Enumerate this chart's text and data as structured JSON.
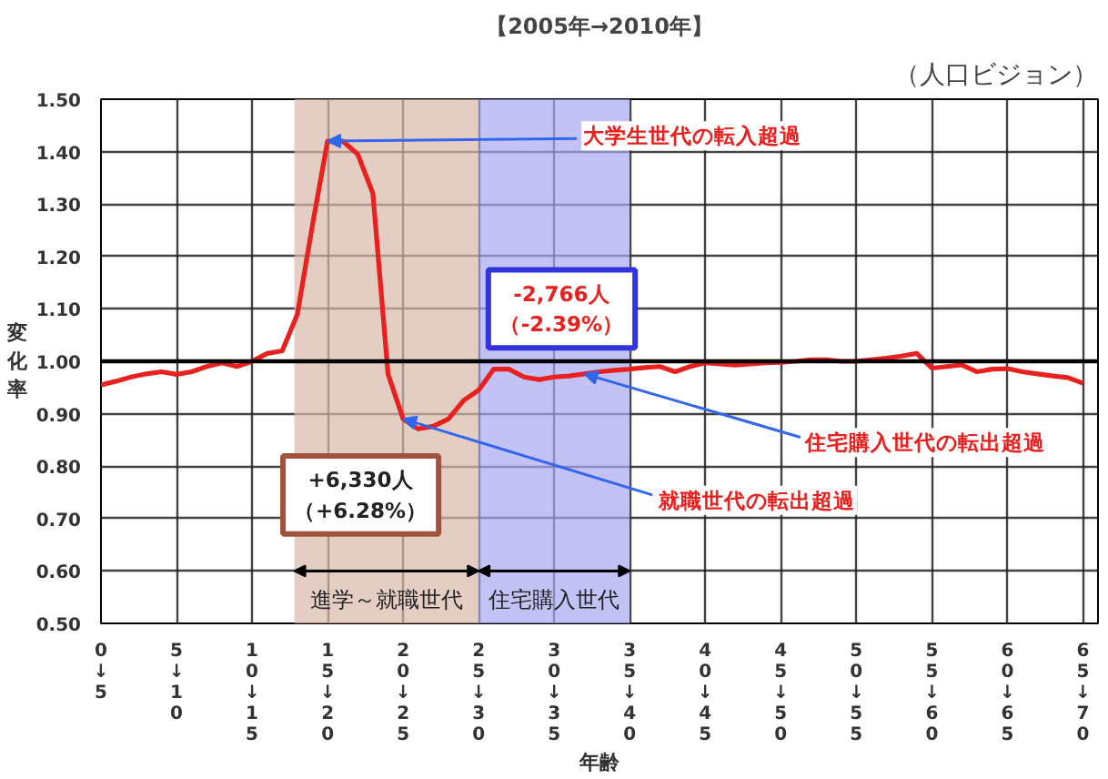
{
  "chart_data": {
    "type": "line",
    "title": "【2005年→2010年】",
    "subtitle": "（人口ビジョン）",
    "xlabel": "年齢",
    "ylabel": "変化率",
    "categories": [
      "0↓5",
      null,
      null,
      null,
      null,
      "5↓10",
      null,
      null,
      null,
      null,
      "10↓15",
      null,
      null,
      null,
      null,
      "15↓20",
      null,
      null,
      null,
      null,
      "20↓25",
      null,
      null,
      null,
      null,
      "25↓30",
      null,
      null,
      null,
      null,
      "30↓35",
      null,
      null,
      null,
      null,
      "35↓40",
      null,
      null,
      null,
      null,
      "40↓45",
      null,
      null,
      null,
      null,
      "45↓50",
      null,
      null,
      null,
      null,
      "50↓55",
      null,
      null,
      null,
      null,
      "55↓60",
      null,
      null,
      null,
      null,
      "60↓65",
      null,
      null,
      null,
      null,
      "65↓70"
    ],
    "series": [
      {
        "color": "#e8201e",
        "values": [
          0.955,
          0.962,
          0.97,
          0.976,
          0.98,
          0.975,
          0.98,
          0.99,
          0.997,
          0.99,
          1.0,
          1.015,
          1.02,
          1.09,
          1.26,
          1.42,
          1.42,
          1.395,
          1.32,
          0.976,
          0.89,
          0.871,
          0.876,
          0.89,
          0.925,
          0.945,
          0.985,
          0.985,
          0.97,
          0.965,
          0.97,
          0.972,
          0.976,
          0.98,
          0.983,
          0.985,
          0.988,
          0.99,
          0.98,
          0.99,
          0.997,
          0.995,
          0.993,
          0.995,
          0.997,
          0.998,
          1.0,
          1.003,
          1.003,
          1.0,
          1.0,
          1.003,
          1.006,
          1.01,
          1.015,
          0.987,
          0.99,
          0.993,
          0.98,
          0.985,
          0.986,
          0.98,
          0.976,
          0.972,
          0.969,
          0.958
        ]
      }
    ],
    "ylim": [
      0.5,
      1.5
    ],
    "yticks": [
      {
        "value": 0.5,
        "label": "0.50"
      },
      {
        "value": 0.6,
        "label": "0.60"
      },
      {
        "value": 0.7,
        "label": "0.70"
      },
      {
        "value": 0.8,
        "label": "0.80"
      },
      {
        "value": 0.9,
        "label": "0.90"
      },
      {
        "value": 1.0,
        "label": "1.00"
      },
      {
        "value": 1.1,
        "label": "1.10"
      },
      {
        "value": 1.2,
        "label": "1.20"
      },
      {
        "value": 1.3,
        "label": "1.30"
      },
      {
        "value": 1.4,
        "label": "1.40"
      },
      {
        "value": 1.5,
        "label": "1.50"
      }
    ],
    "grid": true,
    "ref_lines": [
      {
        "axis": "y",
        "value": 1.0,
        "color": "#000000"
      }
    ],
    "annotations": [
      {
        "text": "大学生世代の転入超過",
        "x": "15↓20",
        "y": 1.42
      },
      "-2,766人（-2.39%）",
      {
        "text": "住宅購入世代の転出超過",
        "y": 0.976
      },
      {
        "text": "就職世代の転出超過",
        "x": "20↓25",
        "y": 0.89
      },
      "+6,330人（+6.28%）",
      "進学～就職世代",
      "住宅購入世代"
    ]
  }
}
